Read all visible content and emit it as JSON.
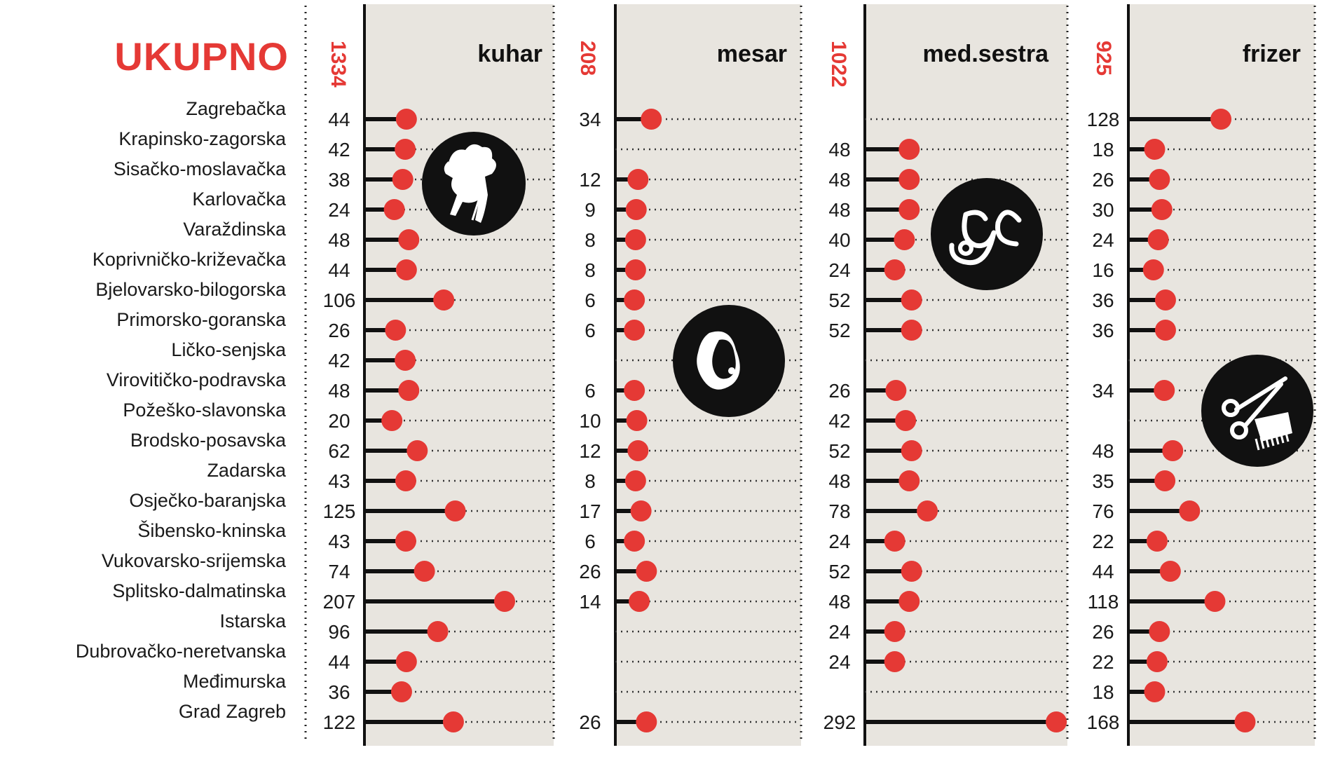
{
  "title": "UKUPNO",
  "colors": {
    "accent": "#e53935",
    "panel_bg": "#e8e5df",
    "stem": "#111111",
    "icon_bg": "#111111",
    "icon_fg": "#ffffff"
  },
  "chart_data": {
    "type": "lollipop",
    "title": "UKUPNO",
    "categories": [
      "Zagrebačka",
      "Krapinsko-zagorska",
      "Sisačko-moslavačka",
      "Karlovačka",
      "Varaždinska",
      "Koprivničko-križevačka",
      "Bjelovarsko-bilogorska",
      "Primorsko-goranska",
      "Ličko-senjska",
      "Virovitičko-podravska",
      "Požeško-slavonska",
      "Brodsko-posavska",
      "Zadarska",
      "Osječko-baranjska",
      "Šibensko-kninska",
      "Vukovarsko-srijemska",
      "Splitsko-dalmatinska",
      "Istarska",
      "Dubrovačko-neretvanska",
      "Međimurska",
      "Grad Zagreb"
    ],
    "series": [
      {
        "name": "kuhar",
        "total": 1334,
        "icon": "chef-icon",
        "values": [
          44,
          42,
          38,
          24,
          48,
          44,
          106,
          26,
          42,
          48,
          20,
          62,
          43,
          125,
          43,
          74,
          207,
          96,
          44,
          36,
          122
        ]
      },
      {
        "name": "mesar",
        "total": 208,
        "icon": "meat-icon",
        "values": [
          34,
          null,
          12,
          9,
          8,
          8,
          6,
          6,
          null,
          6,
          10,
          12,
          8,
          17,
          6,
          26,
          14,
          null,
          null,
          null,
          26
        ]
      },
      {
        "name": "med.sestra",
        "total": 1022,
        "icon": "stethoscope-icon",
        "values": [
          null,
          48,
          48,
          48,
          40,
          24,
          52,
          52,
          null,
          26,
          42,
          52,
          48,
          78,
          24,
          52,
          48,
          24,
          24,
          null,
          292
        ]
      },
      {
        "name": "frizer",
        "total": 925,
        "icon": "scissors-comb-icon",
        "values": [
          128,
          18,
          26,
          30,
          24,
          16,
          36,
          36,
          null,
          34,
          null,
          48,
          35,
          76,
          22,
          44,
          118,
          26,
          22,
          18,
          168
        ]
      }
    ]
  }
}
